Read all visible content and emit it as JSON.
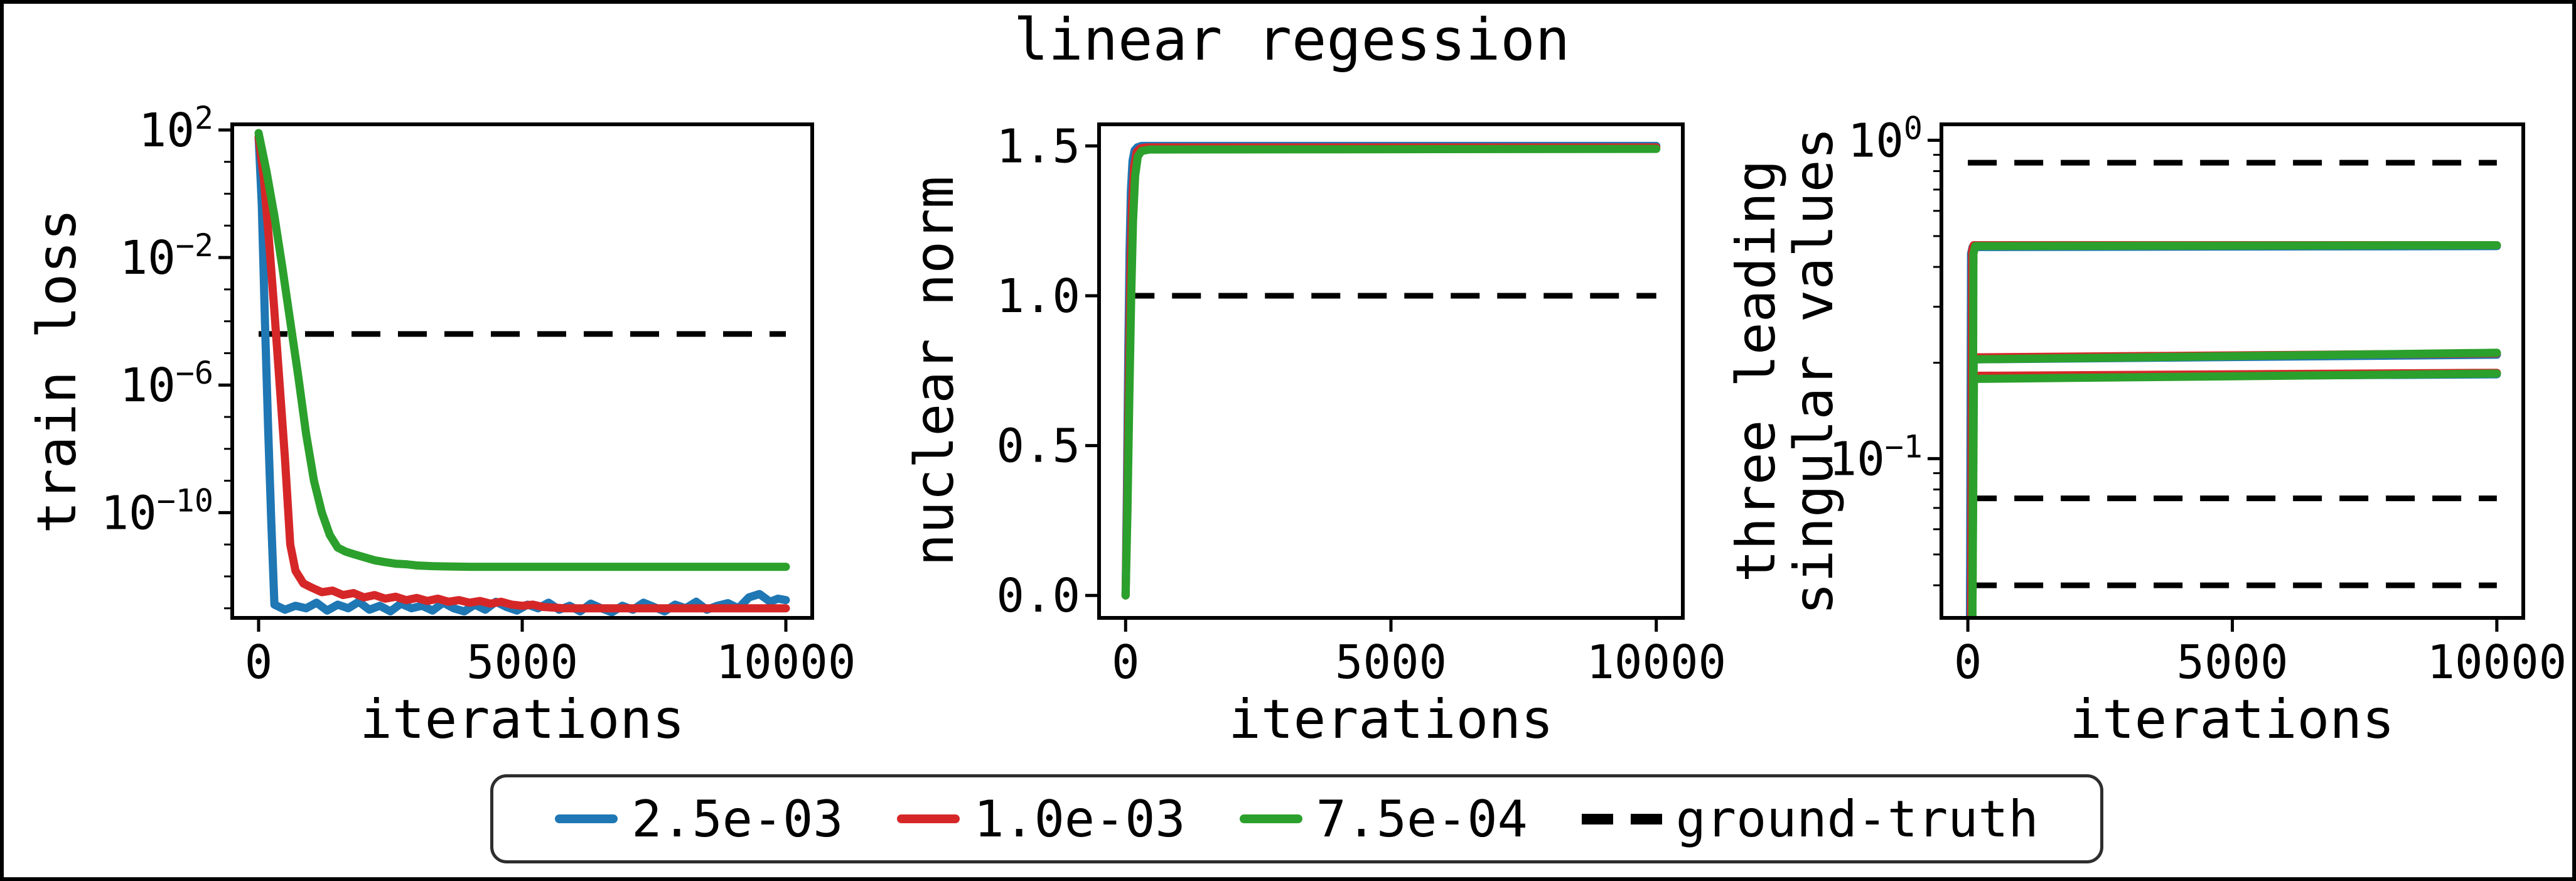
{
  "title": "linear regession",
  "colors": {
    "blue": "#1f77b4",
    "red": "#d62728",
    "green": "#2ca02c",
    "dashed": "#000000"
  },
  "legend": {
    "entries": [
      {
        "label": "2.5e-03",
        "color": "blue",
        "style": "solid"
      },
      {
        "label": "1.0e-03",
        "color": "red",
        "style": "solid"
      },
      {
        "label": "7.5e-04",
        "color": "green",
        "style": "solid"
      },
      {
        "label": "ground-truth",
        "color": "dashed",
        "style": "dashed"
      }
    ]
  },
  "chart_data": [
    {
      "type": "line",
      "xlabel": "iterations",
      "ylabel": "train loss",
      "yscale": "log",
      "xlim": [
        -500,
        10500
      ],
      "ylim": [
        5e-14,
        150
      ],
      "grid": false,
      "xticks": [
        {
          "v": 0,
          "label": "0"
        },
        {
          "v": 5000,
          "label": "5000"
        },
        {
          "v": 10000,
          "label": "10000"
        }
      ],
      "yticks": [
        {
          "v": 100.0,
          "exp": "2"
        },
        {
          "v": 0.01,
          "exp": "−2"
        },
        {
          "v": 1e-06,
          "exp": "−6"
        },
        {
          "v": 1e-10,
          "exp": "−10"
        }
      ],
      "yminor": [
        10,
        1,
        0.1,
        0.001,
        0.0001,
        1e-05,
        1e-07,
        1e-08,
        1e-09,
        1e-11,
        1e-12,
        1e-13
      ],
      "ground_truth": [
        4e-05
      ],
      "series": [
        {
          "name": "2.5e-03",
          "color": "blue",
          "points": [
            [
              0,
              60
            ],
            [
              60,
              0.5
            ],
            [
              120,
              0.0001
            ],
            [
              180,
              5e-08
            ],
            [
              240,
              5e-11
            ],
            [
              300,
              1.3e-13
            ],
            [
              500,
              9e-14
            ],
            [
              700,
              1.2e-13
            ],
            [
              900,
              1e-13
            ],
            [
              1100,
              1.5e-13
            ],
            [
              1300,
              8.5e-14
            ],
            [
              1500,
              1.3e-13
            ],
            [
              1700,
              1e-13
            ],
            [
              1900,
              1.6e-13
            ],
            [
              2100,
              9e-14
            ],
            [
              2300,
              1.2e-13
            ],
            [
              2500,
              8e-14
            ],
            [
              2700,
              1.4e-13
            ],
            [
              2900,
              1e-13
            ],
            [
              3100,
              1.2e-13
            ],
            [
              3300,
              8.5e-14
            ],
            [
              3500,
              1.5e-13
            ],
            [
              3700,
              1e-13
            ],
            [
              3900,
              8e-14
            ],
            [
              4100,
              1.3e-13
            ],
            [
              4300,
              9e-14
            ],
            [
              4500,
              1.6e-13
            ],
            [
              4700,
              1.1e-13
            ],
            [
              4900,
              8.5e-14
            ],
            [
              5100,
              1.3e-13
            ],
            [
              5300,
              1e-13
            ],
            [
              5500,
              1.5e-13
            ],
            [
              5700,
              9e-14
            ],
            [
              5900,
              1.2e-13
            ],
            [
              6100,
              8e-14
            ],
            [
              6300,
              1.4e-13
            ],
            [
              6500,
              1e-13
            ],
            [
              6700,
              7.5e-14
            ],
            [
              6900,
              1.2e-13
            ],
            [
              7100,
              9e-14
            ],
            [
              7300,
              1.5e-13
            ],
            [
              7500,
              1.1e-13
            ],
            [
              7700,
              8e-14
            ],
            [
              7900,
              1.3e-13
            ],
            [
              8100,
              1e-13
            ],
            [
              8300,
              1.6e-13
            ],
            [
              8500,
              9e-14
            ],
            [
              8700,
              1.2e-13
            ],
            [
              8900,
              1.45e-13
            ],
            [
              9100,
              1e-13
            ],
            [
              9300,
              2.2e-13
            ],
            [
              9500,
              2.8e-13
            ],
            [
              9700,
              1.6e-13
            ],
            [
              9850,
              2e-13
            ],
            [
              10000,
              1.8e-13
            ]
          ]
        },
        {
          "name": "1.0e-03",
          "color": "red",
          "points": [
            [
              0,
              60
            ],
            [
              100,
              3
            ],
            [
              200,
              0.03
            ],
            [
              300,
              0.0002
            ],
            [
              400,
              1e-06
            ],
            [
              500,
              5e-09
            ],
            [
              600,
              1e-11
            ],
            [
              700,
              1.5e-12
            ],
            [
              850,
              6e-13
            ],
            [
              1000,
              4.5e-13
            ],
            [
              1200,
              3.2e-13
            ],
            [
              1400,
              3.6e-13
            ],
            [
              1600,
              2.6e-13
            ],
            [
              1800,
              3e-13
            ],
            [
              2000,
              2.2e-13
            ],
            [
              2200,
              2.6e-13
            ],
            [
              2400,
              2e-13
            ],
            [
              2600,
              2.3e-13
            ],
            [
              2800,
              1.8e-13
            ],
            [
              3000,
              2.1e-13
            ],
            [
              3200,
              1.7e-13
            ],
            [
              3400,
              2e-13
            ],
            [
              3600,
              1.6e-13
            ],
            [
              3800,
              1.8e-13
            ],
            [
              4000,
              1.5e-13
            ],
            [
              4200,
              1.7e-13
            ],
            [
              4400,
              1.4e-13
            ],
            [
              4600,
              1.6e-13
            ],
            [
              4800,
              1.3e-13
            ],
            [
              5000,
              1.2e-13
            ],
            [
              5200,
              1.3e-13
            ],
            [
              5400,
              1.1e-13
            ],
            [
              5600,
              1.05e-13
            ],
            [
              5800,
              1e-13
            ],
            [
              10000,
              1e-13
            ]
          ]
        },
        {
          "name": "7.5e-04",
          "color": "green",
          "points": [
            [
              0,
              80
            ],
            [
              150,
              5
            ],
            [
              300,
              0.2
            ],
            [
              450,
              0.005
            ],
            [
              600,
              0.0001
            ],
            [
              750,
              2e-06
            ],
            [
              900,
              3e-08
            ],
            [
              1050,
              1e-09
            ],
            [
              1200,
              1e-10
            ],
            [
              1350,
              2e-11
            ],
            [
              1500,
              8e-12
            ],
            [
              1650,
              6e-12
            ],
            [
              1800,
              5e-12
            ],
            [
              2000,
              4e-12
            ],
            [
              2200,
              3.2e-12
            ],
            [
              2400,
              2.8e-12
            ],
            [
              2600,
              2.5e-12
            ],
            [
              2800,
              2.4e-12
            ],
            [
              3000,
              2.2e-12
            ],
            [
              3300,
              2.1e-12
            ],
            [
              3600,
              2.05e-12
            ],
            [
              4000,
              2e-12
            ],
            [
              10000,
              2e-12
            ]
          ]
        }
      ]
    },
    {
      "type": "line",
      "xlabel": "iterations",
      "ylabel": "nuclear norm",
      "yscale": "linear",
      "xlim": [
        -500,
        10500
      ],
      "ylim": [
        -0.075,
        1.572
      ],
      "grid": false,
      "xticks": [
        {
          "v": 0,
          "label": "0"
        },
        {
          "v": 5000,
          "label": "5000"
        },
        {
          "v": 10000,
          "label": "10000"
        }
      ],
      "yticks": [
        {
          "v": 0.0,
          "label": "0.0"
        },
        {
          "v": 0.5,
          "label": "0.5"
        },
        {
          "v": 1.0,
          "label": "1.0"
        },
        {
          "v": 1.5,
          "label": "1.5"
        }
      ],
      "yminor": [],
      "ground_truth": [
        1.0
      ],
      "series": [
        {
          "name": "2.5e-03",
          "color": "blue",
          "points": [
            [
              0,
              0
            ],
            [
              25,
              0.35
            ],
            [
              50,
              0.8
            ],
            [
              75,
              1.15
            ],
            [
              100,
              1.35
            ],
            [
              130,
              1.45
            ],
            [
              170,
              1.485
            ],
            [
              220,
              1.495
            ],
            [
              300,
              1.5
            ],
            [
              10000,
              1.5
            ]
          ]
        },
        {
          "name": "1.0e-03",
          "color": "red",
          "points": [
            [
              0,
              0
            ],
            [
              30,
              0.3
            ],
            [
              60,
              0.72
            ],
            [
              90,
              1.08
            ],
            [
              120,
              1.3
            ],
            [
              160,
              1.43
            ],
            [
              210,
              1.48
            ],
            [
              280,
              1.492
            ],
            [
              400,
              1.495
            ],
            [
              10000,
              1.495
            ]
          ]
        },
        {
          "name": "7.5e-04",
          "color": "green",
          "points": [
            [
              0,
              0
            ],
            [
              35,
              0.28
            ],
            [
              70,
              0.66
            ],
            [
              105,
              1.0
            ],
            [
              140,
              1.25
            ],
            [
              180,
              1.4
            ],
            [
              230,
              1.465
            ],
            [
              300,
              1.483
            ],
            [
              450,
              1.488
            ],
            [
              10000,
              1.49
            ]
          ]
        }
      ]
    },
    {
      "type": "line",
      "xlabel": "iterations",
      "ylabel": "three leading\nsingular values",
      "yscale": "log",
      "xlim": [
        -500,
        10500
      ],
      "ylim": [
        0.0316,
        1.122
      ],
      "grid": false,
      "xticks": [
        {
          "v": 0,
          "label": "0"
        },
        {
          "v": 5000,
          "label": "5000"
        },
        {
          "v": 10000,
          "label": "10000"
        }
      ],
      "yticks": [
        {
          "v": 1,
          "exp": "0"
        },
        {
          "v": 0.1,
          "exp": "−1"
        }
      ],
      "yminor": [
        0.9,
        0.8,
        0.7,
        0.6,
        0.5,
        0.4,
        0.3,
        0.2,
        0.09,
        0.08,
        0.07,
        0.06,
        0.05,
        0.04
      ],
      "ground_truth": [
        0.85,
        0.075,
        0.04
      ],
      "series": [
        {
          "name": "2.5e-03-s1",
          "color": "blue",
          "points": [
            [
              40,
              0.03
            ],
            [
              60,
              0.44
            ],
            [
              90,
              0.462
            ],
            [
              10000,
              0.465
            ]
          ]
        },
        {
          "name": "2.5e-03-s2",
          "color": "blue",
          "points": [
            [
              40,
              0.03
            ],
            [
              65,
              0.205
            ],
            [
              10000,
              0.212
            ]
          ]
        },
        {
          "name": "2.5e-03-s3",
          "color": "blue",
          "points": [
            [
              40,
              0.03
            ],
            [
              70,
              0.18
            ],
            [
              10000,
              0.184
            ]
          ]
        },
        {
          "name": "1.0e-03-s1",
          "color": "red",
          "points": [
            [
              60,
              0.03
            ],
            [
              80,
              0.45
            ],
            [
              110,
              0.468
            ],
            [
              10000,
              0.468
            ]
          ]
        },
        {
          "name": "1.0e-03-s2",
          "color": "red",
          "points": [
            [
              60,
              0.03
            ],
            [
              85,
              0.208
            ],
            [
              10000,
              0.214
            ]
          ]
        },
        {
          "name": "1.0e-03-s3",
          "color": "red",
          "points": [
            [
              60,
              0.03
            ],
            [
              90,
              0.182
            ],
            [
              10000,
              0.186
            ]
          ]
        },
        {
          "name": "7.5e-04-s1",
          "color": "green",
          "points": [
            [
              85,
              0.03
            ],
            [
              105,
              0.44
            ],
            [
              140,
              0.465
            ],
            [
              10000,
              0.468
            ]
          ]
        },
        {
          "name": "7.5e-04-s2",
          "color": "green",
          "points": [
            [
              85,
              0.03
            ],
            [
              110,
              0.205
            ],
            [
              10000,
              0.215
            ]
          ]
        },
        {
          "name": "7.5e-04-s3",
          "color": "green",
          "points": [
            [
              85,
              0.03
            ],
            [
              115,
              0.178
            ],
            [
              10000,
              0.185
            ]
          ]
        }
      ]
    }
  ]
}
